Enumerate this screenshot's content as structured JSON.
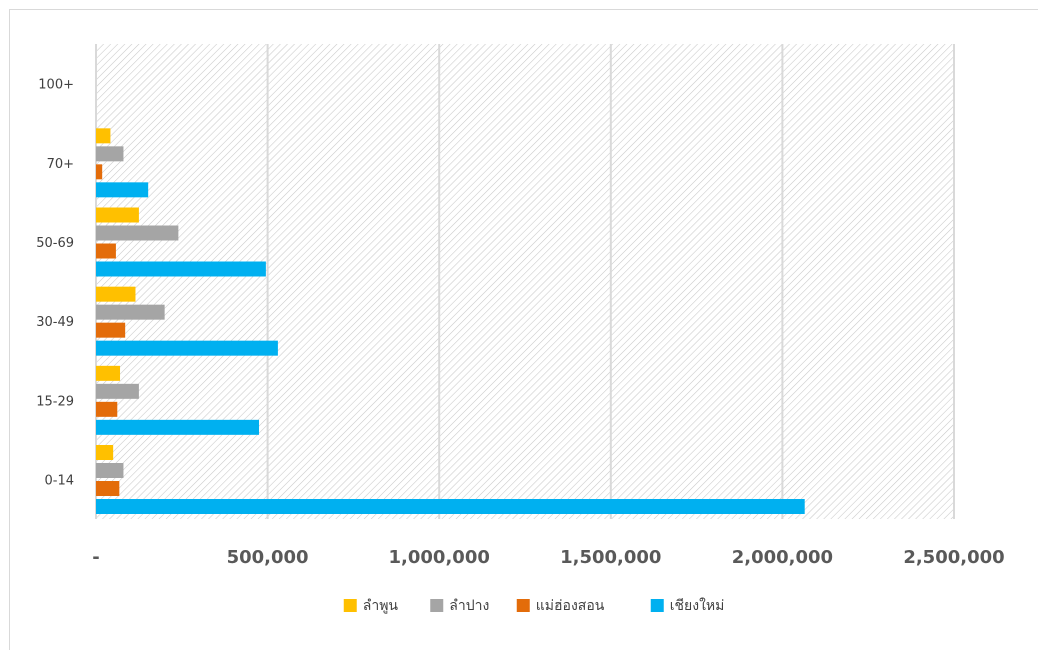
{
  "chart_data": {
    "type": "bar",
    "orientation": "horizontal",
    "categories": [
      "0-14",
      "15-29",
      "30-49",
      "50-69",
      "70+",
      "100+"
    ],
    "series": [
      {
        "name": "ลำพูน",
        "color": "#FFC000",
        "values": [
          50000,
          70000,
          115000,
          125000,
          42000,
          0
        ]
      },
      {
        "name": "ลำปาง",
        "color": "#A5A5A5",
        "values": [
          80000,
          125000,
          200000,
          240000,
          80000,
          0
        ]
      },
      {
        "name": "แม่ฮ่องสอน",
        "color": "#E36C0A",
        "values": [
          68000,
          62000,
          85000,
          58000,
          18000,
          0
        ]
      },
      {
        "name": "เชียงใหม่",
        "color": "#00B0F0",
        "values": [
          2065000,
          475000,
          530000,
          495000,
          152000,
          0
        ]
      }
    ],
    "xlim": [
      0,
      2500000
    ],
    "xticks": [
      {
        "value": 0,
        "label": "-"
      },
      {
        "value": 500000,
        "label": "500,000"
      },
      {
        "value": 1000000,
        "label": "1,000,000"
      },
      {
        "value": 1500000,
        "label": "1,500,000"
      },
      {
        "value": 2000000,
        "label": "2,000,000"
      },
      {
        "value": 2500000,
        "label": "2,500,000"
      }
    ],
    "title": "",
    "xlabel": "",
    "ylabel": "",
    "grid": true,
    "plot_background": "hatched",
    "legend_position": "bottom"
  }
}
